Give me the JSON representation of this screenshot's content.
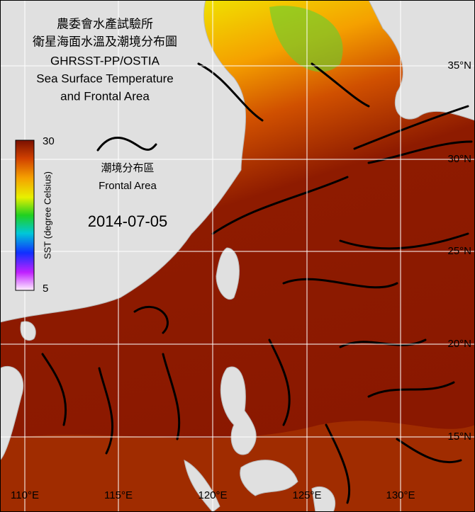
{
  "title_lines": [
    "農委會水產試驗所",
    "衛星海面水溫及潮境分布圖",
    "GHRSST-PP/OSTIA",
    "Sea Surface Temperature",
    "and Frontal Area"
  ],
  "colorbar": {
    "max": 30,
    "min": 5,
    "label": "SST (degree Celsius)"
  },
  "legend": {
    "label_zh": "潮境分布區",
    "label_en": "Frontal Area"
  },
  "date": "2014-07-05",
  "lat_labels": [
    "35°N",
    "30°N",
    "25°N",
    "20°N",
    "15°N"
  ],
  "lon_labels": [
    "110°E",
    "115°E",
    "120°E",
    "125°E",
    "130°E"
  ]
}
